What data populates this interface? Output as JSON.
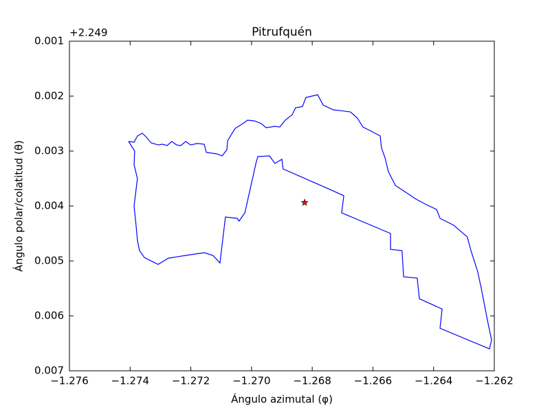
{
  "chart_data": {
    "type": "line",
    "title": "Pitrufquén",
    "xlabel": "Ángulo azimutal (φ)",
    "ylabel": "Ángulo polar/colatitud (θ)",
    "y_offset_label": "+2.249",
    "xlim": [
      -1.276,
      -1.262
    ],
    "ylim": [
      0.007,
      0.001
    ],
    "xticks": [
      {
        "value": -1.276,
        "label": "−1.276"
      },
      {
        "value": -1.274,
        "label": "−1.274"
      },
      {
        "value": -1.272,
        "label": "−1.272"
      },
      {
        "value": -1.27,
        "label": "−1.270"
      },
      {
        "value": -1.268,
        "label": "−1.268"
      },
      {
        "value": -1.266,
        "label": "−1.266"
      },
      {
        "value": -1.264,
        "label": "−1.264"
      },
      {
        "value": -1.262,
        "label": "−1.262"
      }
    ],
    "yticks": [
      0.001,
      0.002,
      0.003,
      0.004,
      0.005,
      0.006,
      0.007
    ],
    "x": [
      -1.27405,
      -1.27387,
      -1.27376,
      -1.2736,
      -1.27346,
      -1.27331,
      -1.27308,
      -1.27294,
      -1.27278,
      -1.27263,
      -1.27247,
      -1.27233,
      -1.27217,
      -1.27201,
      -1.27179,
      -1.27156,
      -1.27149,
      -1.27115,
      -1.27097,
      -1.27081,
      -1.27079,
      -1.27068,
      -1.27054,
      -1.27032,
      -1.27013,
      -1.26991,
      -1.26968,
      -1.26952,
      -1.26923,
      -1.26907,
      -1.26889,
      -1.26866,
      -1.26855,
      -1.26832,
      -1.26821,
      -1.26782,
      -1.26764,
      -1.2673,
      -1.26708,
      -1.26674,
      -1.26651,
      -1.26633,
      -1.2661,
      -1.26576,
      -1.26572,
      -1.2656,
      -1.26549,
      -1.26526,
      -1.26492,
      -1.26458,
      -1.26424,
      -1.2639,
      -1.26379,
      -1.26334,
      -1.26289,
      -1.26277,
      -1.26255,
      -1.26243,
      -1.26232,
      -1.26221,
      -1.26209,
      -1.26216,
      -1.26379,
      -1.26372,
      -1.26447,
      -1.26454,
      -1.26499,
      -1.26504,
      -1.26542,
      -1.26542,
      -1.26703,
      -1.26696,
      -1.26746,
      -1.26896,
      -1.269,
      -1.26923,
      -1.26941,
      -1.26979,
      -1.26984,
      -1.27022,
      -1.27041,
      -1.27047,
      -1.27086,
      -1.27104,
      -1.27127,
      -1.27156,
      -1.27217,
      -1.27274,
      -1.27308,
      -1.27353,
      -1.27369,
      -1.27376,
      -1.2738,
      -1.27387,
      -1.27376,
      -1.27387,
      -1.27385,
      -1.27405
    ],
    "series": [
      {
        "color": "#0000ff",
        "values": [
          0.002825,
          0.002838,
          0.002725,
          0.002675,
          0.00275,
          0.00285,
          0.002888,
          0.002875,
          0.0029,
          0.002825,
          0.002888,
          0.0029,
          0.002825,
          0.002888,
          0.002863,
          0.002875,
          0.003025,
          0.00305,
          0.003088,
          0.002975,
          0.002813,
          0.002713,
          0.002588,
          0.002513,
          0.002438,
          0.00245,
          0.0025,
          0.002575,
          0.00255,
          0.002563,
          0.002438,
          0.002338,
          0.002213,
          0.002188,
          0.002025,
          0.001975,
          0.002163,
          0.00225,
          0.002263,
          0.002288,
          0.0024,
          0.002563,
          0.002625,
          0.002725,
          0.002938,
          0.003125,
          0.003375,
          0.003625,
          0.00375,
          0.003875,
          0.003975,
          0.004063,
          0.004225,
          0.00435,
          0.004563,
          0.004813,
          0.005188,
          0.0055,
          0.005813,
          0.006125,
          0.006438,
          0.0066,
          0.006225,
          0.005875,
          0.005688,
          0.005313,
          0.005288,
          0.004813,
          0.004788,
          0.0045,
          0.004125,
          0.003813,
          0.003688,
          0.003325,
          0.00315,
          0.003225,
          0.003088,
          0.0031,
          0.003188,
          0.004125,
          0.004275,
          0.004225,
          0.0042,
          0.005038,
          0.0049,
          0.00485,
          0.0049,
          0.00495,
          0.005063,
          0.004938,
          0.004813,
          0.004625,
          0.004375,
          0.004,
          0.0035,
          0.00325,
          0.003,
          0.002825
        ]
      }
    ],
    "marker": {
      "x": -1.26825,
      "y": 0.003938,
      "color": "#ff0000",
      "shape": "star"
    }
  }
}
